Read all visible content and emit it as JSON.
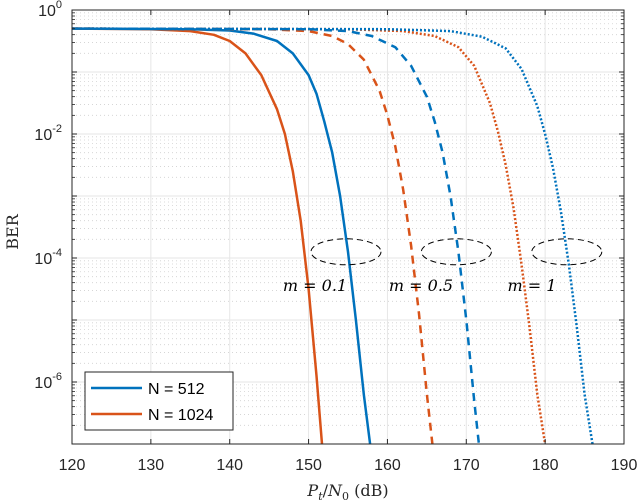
{
  "chart_data": {
    "type": "line",
    "title": "",
    "xlabel": "P_t/N_0 (dB)",
    "ylabel": "BER",
    "xlim": [
      120,
      190
    ],
    "ylim": [
      1e-07,
      1
    ],
    "yscale": "log",
    "grid": true,
    "minor_grid": true,
    "x_ticks": [
      120,
      130,
      140,
      150,
      160,
      170,
      180,
      190
    ],
    "y_ticks": [
      {
        "exp": 0,
        "label": "10^0"
      },
      {
        "exp": -2,
        "label": "10^-2"
      },
      {
        "exp": -4,
        "label": "10^-4"
      },
      {
        "exp": -6,
        "label": "10^-6"
      }
    ],
    "legend": {
      "position": "lower left",
      "entries": [
        {
          "label": "N = 512",
          "color": "#0072BD"
        },
        {
          "label": "N = 1024",
          "color": "#D95319"
        }
      ]
    },
    "series": [
      {
        "name": "N = 1024, m = 0.1",
        "color": "#D95319",
        "style": "solid",
        "x": [
          120,
          130,
          135,
          138,
          140,
          142,
          144,
          146,
          147,
          148,
          149,
          150,
          151,
          151.7
        ],
        "log10_y": [
          -0.3,
          -0.31,
          -0.34,
          -0.4,
          -0.5,
          -0.7,
          -1.05,
          -1.6,
          -2.0,
          -2.6,
          -3.4,
          -4.5,
          -5.9,
          -7.0
        ]
      },
      {
        "name": "N = 512, m = 0.1",
        "color": "#0072BD",
        "style": "solid",
        "x": [
          120,
          135,
          140,
          143,
          146,
          148,
          150,
          151,
          152,
          153,
          154,
          155,
          156,
          157,
          157.8
        ],
        "log10_y": [
          -0.3,
          -0.31,
          -0.33,
          -0.38,
          -0.5,
          -0.7,
          -1.05,
          -1.35,
          -1.8,
          -2.3,
          -3.0,
          -3.9,
          -5.0,
          -6.2,
          -7.0
        ]
      },
      {
        "name": "N = 1024, m = 0.5",
        "color": "#D95319",
        "style": "dashed",
        "x": [
          120,
          145,
          150,
          153,
          155,
          157,
          159,
          160,
          161,
          162,
          163,
          164,
          165,
          165.7
        ],
        "log10_y": [
          -0.3,
          -0.31,
          -0.34,
          -0.42,
          -0.55,
          -0.8,
          -1.3,
          -1.7,
          -2.2,
          -2.9,
          -3.8,
          -4.9,
          -6.2,
          -7.0
        ]
      },
      {
        "name": "N = 512, m = 0.5",
        "color": "#0072BD",
        "style": "dashed",
        "x": [
          120,
          150,
          155,
          158,
          161,
          163,
          165,
          166,
          167,
          168,
          169,
          170,
          171,
          171.6
        ],
        "log10_y": [
          -0.3,
          -0.31,
          -0.34,
          -0.42,
          -0.6,
          -0.9,
          -1.4,
          -1.8,
          -2.3,
          -3.0,
          -3.9,
          -5.0,
          -6.3,
          -7.0
        ]
      },
      {
        "name": "N = 1024, m = 1",
        "color": "#D95319",
        "style": "dotted",
        "x": [
          120,
          155,
          162,
          166,
          169,
          171,
          173,
          174,
          175,
          176,
          177,
          178,
          179,
          180
        ],
        "log10_y": [
          -0.3,
          -0.31,
          -0.34,
          -0.42,
          -0.6,
          -0.9,
          -1.5,
          -1.95,
          -2.5,
          -3.2,
          -4.1,
          -5.1,
          -6.2,
          -7.0
        ]
      },
      {
        "name": "N = 512, m = 1",
        "color": "#0072BD",
        "style": "dotted",
        "x": [
          120,
          160,
          168,
          172,
          175,
          177,
          179,
          180,
          181,
          182,
          183,
          184,
          185,
          186
        ],
        "log10_y": [
          -0.3,
          -0.31,
          -0.34,
          -0.43,
          -0.62,
          -0.95,
          -1.55,
          -2.0,
          -2.55,
          -3.25,
          -4.1,
          -5.1,
          -6.2,
          -7.0
        ]
      }
    ],
    "annotations": [
      {
        "label": "m = 0.1",
        "ellipse_center": [
          155,
          -3.9
        ]
      },
      {
        "label": "m = 0.5",
        "ellipse_center": [
          169,
          -3.9
        ]
      },
      {
        "label": "m = 1",
        "ellipse_center": [
          183,
          -3.9
        ]
      }
    ]
  },
  "labels": {
    "xlabel_italic": "P",
    "xlabel_sub1": "t",
    "xlabel_slash": "/",
    "xlabel_N": "N",
    "xlabel_sub2": "0",
    "xlabel_unit": " (dB)",
    "ylabel": "BER",
    "annot_m01": "m = 0.1",
    "annot_m05": "m = 0.5",
    "annot_m1": "m = 1",
    "legend_512": "N = 512",
    "legend_1024": "N = 1024"
  }
}
